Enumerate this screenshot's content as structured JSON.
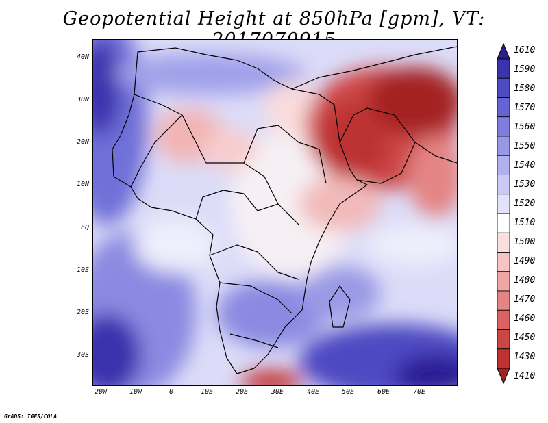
{
  "title": "Geopotential Height at 850hPa [gpm], VT: 2017070915",
  "credit": "GrADS: IGES/COLA",
  "lat_labels": [
    "40N",
    "30N",
    "20N",
    "10N",
    "EQ",
    "10S",
    "20S",
    "30S"
  ],
  "lon_labels": [
    "20W",
    "10W",
    "0",
    "10E",
    "20E",
    "30E",
    "40E",
    "50E",
    "60E",
    "70E"
  ],
  "colorbar": {
    "levels": [
      "1610",
      "1590",
      "1580",
      "1570",
      "1560",
      "1550",
      "1540",
      "1530",
      "1520",
      "1510",
      "1500",
      "1490",
      "1480",
      "1470",
      "1460",
      "1450",
      "1430",
      "1410"
    ],
    "colors": [
      "#2b1e94",
      "#3a33ad",
      "#4d4ac2",
      "#6564d2",
      "#7e7ede",
      "#9898e6",
      "#b0b0ee",
      "#cacaf5",
      "#e2e2fa",
      "#ffffff",
      "#fbdede",
      "#f6c4c4",
      "#eea6a6",
      "#e48484",
      "#d96262",
      "#cd4646",
      "#bd3131",
      "#a42121"
    ]
  }
}
